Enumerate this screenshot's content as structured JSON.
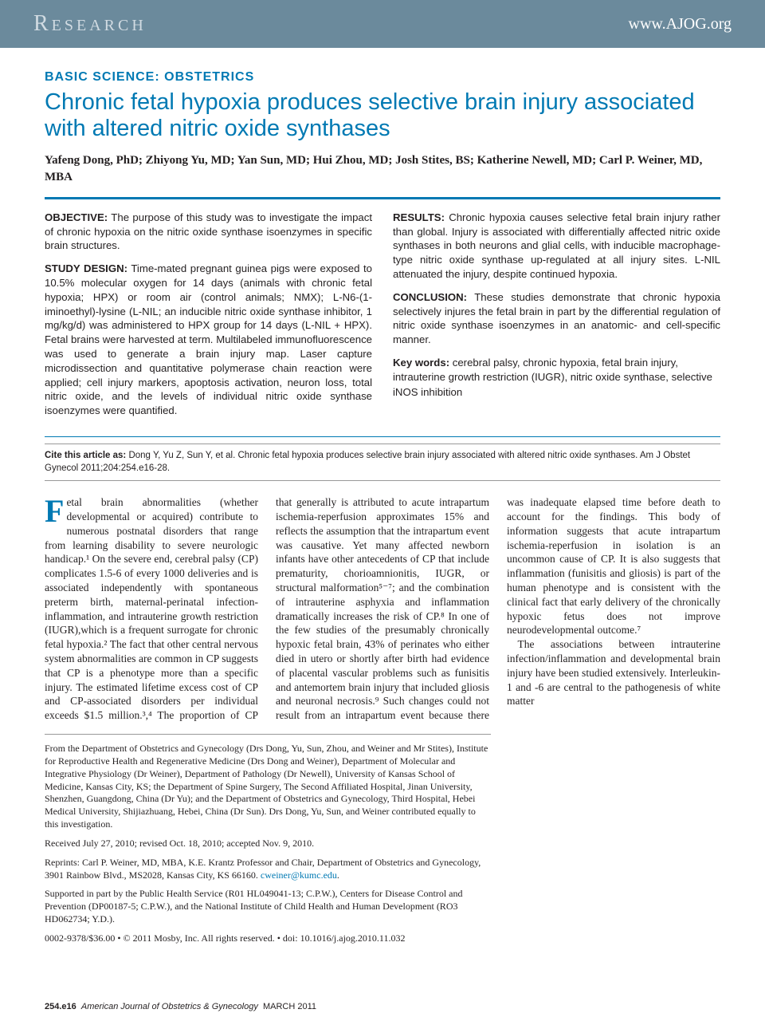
{
  "header": {
    "section_label": "Research",
    "site_url": "www.AJOG.org"
  },
  "article": {
    "category": "BASIC SCIENCE: OBSTETRICS",
    "title": "Chronic fetal hypoxia produces selective brain injury associated with altered nitric oxide synthases",
    "authors": "Yafeng Dong, PhD; Zhiyong Yu, MD; Yan Sun, MD; Hui Zhou, MD; Josh Stites, BS; Katherine Newell, MD; Carl P. Weiner, MD, MBA"
  },
  "abstract": {
    "objective_label": "OBJECTIVE:",
    "objective": " The purpose of this study was to investigate the impact of chronic hypoxia on the nitric oxide synthase isoenzymes in specific brain structures.",
    "design_label": "STUDY DESIGN:",
    "design": " Time-mated pregnant guinea pigs were exposed to 10.5% molecular oxygen for 14 days (animals with chronic fetal hypoxia; HPX) or room air (control animals; NMX); L-N6-(1-iminoethyl)-lysine (L-NIL; an inducible nitric oxide synthase inhibitor, 1 mg/kg/d) was administered to HPX group for 14 days (L-NIL + HPX). Fetal brains were harvested at term. Multilabeled immunofluorescence was used to generate a brain injury map. Laser capture microdissection and quantitative polymerase chain reaction were applied; cell injury markers, apoptosis activation, neuron loss, total nitric oxide, and the levels of individual nitric oxide synthase isoenzymes were quantified.",
    "results_label": "RESULTS:",
    "results": " Chronic hypoxia causes selective fetal brain injury rather than global. Injury is associated with differentially affected nitric oxide synthases in both neurons and glial cells, with inducible macrophage-type nitric oxide synthase up-regulated at all injury sites. L-NIL attenuated the injury, despite continued hypoxia.",
    "conclusion_label": "CONCLUSION:",
    "conclusion": " These studies demonstrate that chronic hypoxia selectively injures the fetal brain in part by the differential regulation of nitric oxide synthase isoenzymes in an anatomic- and cell-specific manner.",
    "keywords_label": "Key words:",
    "keywords": " cerebral palsy, chronic hypoxia, fetal brain injury, intrauterine growth restriction (IUGR), nitric oxide synthase, selective iNOS inhibition"
  },
  "citation": {
    "label": "Cite this article as:",
    "text": " Dong Y, Yu Z, Sun Y, et al. Chronic fetal hypoxia produces selective brain injury associated with altered nitric oxide synthases. Am J Obstet Gynecol 2011;204:254.e16-28."
  },
  "body": {
    "p1_first": "F",
    "p1": "etal brain abnormalities (whether developmental or acquired) contribute to numerous postnatal disorders that range from learning disability to severe neurologic handicap.¹ On the severe end, cerebral palsy (CP) complicates 1.5-6 of every 1000 deliveries and is associated independently with spontaneous preterm birth, maternal-perinatal infection-inflammation, and intrauterine growth restriction (IUGR),which is a frequent surrogate for chronic fetal hypoxia.² The fact that other central nervous system abnormalities are common in CP suggests that CP is a phenotype more than a specific injury. The estimated lifetime excess cost of CP and CP-associated disorders per individual exceeds $1.5 million.³,⁴ The proportion of CP that generally is attributed to acute intrapartum ischemia-reperfusion approximates 15% and reflects the assumption that the intrapartum event was causative. Yet many affected newborn infants have other antecedents of CP that include prematurity, chorioamnionitis, IUGR, or structural malformation⁵⁻⁷; and the combination of intrauterine asphyxia and inflammation dramatically increases the risk of CP.⁸ In one of the few studies of the presumably chronically hypoxic fetal brain, 43% of perinates who either died in utero or shortly after birth had evidence of placental vascular problems such as funisitis and antemortem brain injury that included gliosis and neuronal necrosis.⁹ Such changes could not result from an intrapartum event because there was inadequate elapsed time before death to account for the findings. This body of information suggests that acute intrapartum ischemia-reperfusion in isolation is an uncommon cause of CP. It is also suggests that inflammation (funisitis and gliosis) is part of the human phenotype and is consistent with the clinical fact that early delivery of the chronically hypoxic fetus does not improve neurodevelopmental outcome.⁷",
    "p2": "The associations between intrauterine infection/inflammation and developmental brain injury have been studied extensively. Interleukin-1 and -6 are central to the pathogenesis of white matter"
  },
  "affiliations": {
    "from": "From the Department of Obstetrics and Gynecology (Drs Dong, Yu, Sun, Zhou, and Weiner and Mr Stites), Institute for Reproductive Health and Regenerative Medicine (Drs Dong and Weiner), Department of Molecular and Integrative Physiology (Dr Weiner), Department of Pathology (Dr Newell), University of Kansas School of Medicine, Kansas City, KS; the Department of Spine Surgery, The Second Affiliated Hospital, Jinan University, Shenzhen, Guangdong, China (Dr Yu); and the Department of Obstetrics and Gynecology, Third Hospital, Hebei Medical University, Shijiazhuang, Hebei, China (Dr Sun). Drs Dong, Yu, Sun, and Weiner contributed equally to this investigation.",
    "received": "Received July 27, 2010; revised Oct. 18, 2010; accepted Nov. 9, 2010.",
    "reprints_pre": "Reprints: Carl P. Weiner, MD, MBA, K.E. Krantz Professor and Chair, Department of Obstetrics and Gynecology, 3901 Rainbow Blvd., MS2028, Kansas City, KS 66160. ",
    "email": "cweiner@kumc.edu",
    "reprints_post": ".",
    "support": "Supported in part by the Public Health Service (R01 HL049041-13; C.P.W.), Centers for Disease Control and Prevention (DP00187-5; C.P.W.), and the National Institute of Child Health and Human Development (RO3 HD062734; Y.D.).",
    "copyright": "0002-9378/$36.00 • © 2011 Mosby, Inc. All rights reserved. • doi: 10.1016/j.ajog.2010.11.032"
  },
  "footer": {
    "page": "254.e16",
    "journal": "American Journal of Obstetrics & Gynecology",
    "date": "MARCH 2011"
  },
  "colors": {
    "header_bg": "#6b8a9c",
    "header_label": "#d1dbe2",
    "accent": "#0079b3",
    "text": "#231f20",
    "rule_gray": "#999999"
  }
}
